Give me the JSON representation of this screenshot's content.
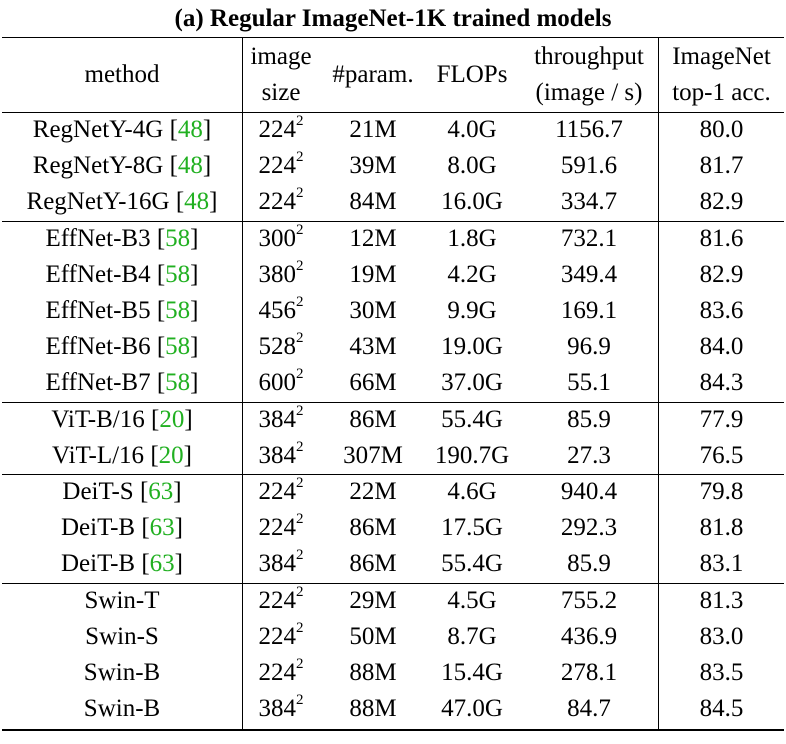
{
  "title": "(a) Regular ImageNet-1K trained models",
  "headers": {
    "method": "method",
    "image_size": [
      "image",
      "size"
    ],
    "param": "#param.",
    "flops": "FLOPs",
    "throughput": [
      "throughput",
      "(image / s)"
    ],
    "accuracy": [
      "ImageNet",
      "top-1 acc."
    ]
  },
  "groups": [
    [
      {
        "method": "RegNetY-4G",
        "ref": "48",
        "size": "224",
        "exp": "2",
        "param": "21M",
        "flops": "4.0G",
        "throughput": "1156.7",
        "acc": "80.0"
      },
      {
        "method": "RegNetY-8G",
        "ref": "48",
        "size": "224",
        "exp": "2",
        "param": "39M",
        "flops": "8.0G",
        "throughput": "591.6",
        "acc": "81.7"
      },
      {
        "method": "RegNetY-16G",
        "ref": "48",
        "size": "224",
        "exp": "2",
        "param": "84M",
        "flops": "16.0G",
        "throughput": "334.7",
        "acc": "82.9"
      }
    ],
    [
      {
        "method": "EffNet-B3",
        "ref": "58",
        "size": "300",
        "exp": "2",
        "param": "12M",
        "flops": "1.8G",
        "throughput": "732.1",
        "acc": "81.6"
      },
      {
        "method": "EffNet-B4",
        "ref": "58",
        "size": "380",
        "exp": "2",
        "param": "19M",
        "flops": "4.2G",
        "throughput": "349.4",
        "acc": "82.9"
      },
      {
        "method": "EffNet-B5",
        "ref": "58",
        "size": "456",
        "exp": "2",
        "param": "30M",
        "flops": "9.9G",
        "throughput": "169.1",
        "acc": "83.6"
      },
      {
        "method": "EffNet-B6",
        "ref": "58",
        "size": "528",
        "exp": "2",
        "param": "43M",
        "flops": "19.0G",
        "throughput": "96.9",
        "acc": "84.0"
      },
      {
        "method": "EffNet-B7",
        "ref": "58",
        "size": "600",
        "exp": "2",
        "param": "66M",
        "flops": "37.0G",
        "throughput": "55.1",
        "acc": "84.3"
      }
    ],
    [
      {
        "method": "ViT-B/16",
        "ref": "20",
        "size": "384",
        "exp": "2",
        "param": "86M",
        "flops": "55.4G",
        "throughput": "85.9",
        "acc": "77.9"
      },
      {
        "method": "ViT-L/16",
        "ref": "20",
        "size": "384",
        "exp": "2",
        "param": "307M",
        "flops": "190.7G",
        "throughput": "27.3",
        "acc": "76.5"
      }
    ],
    [
      {
        "method": "DeiT-S",
        "ref": "63",
        "size": "224",
        "exp": "2",
        "param": "22M",
        "flops": "4.6G",
        "throughput": "940.4",
        "acc": "79.8"
      },
      {
        "method": "DeiT-B",
        "ref": "63",
        "size": "224",
        "exp": "2",
        "param": "86M",
        "flops": "17.5G",
        "throughput": "292.3",
        "acc": "81.8"
      },
      {
        "method": "DeiT-B",
        "ref": "63",
        "size": "384",
        "exp": "2",
        "param": "86M",
        "flops": "55.4G",
        "throughput": "85.9",
        "acc": "83.1"
      }
    ],
    [
      {
        "method": "Swin-T",
        "ref": "",
        "size": "224",
        "exp": "2",
        "param": "29M",
        "flops": "4.5G",
        "throughput": "755.2",
        "acc": "81.3"
      },
      {
        "method": "Swin-S",
        "ref": "",
        "size": "224",
        "exp": "2",
        "param": "50M",
        "flops": "8.7G",
        "throughput": "436.9",
        "acc": "83.0"
      },
      {
        "method": "Swin-B",
        "ref": "",
        "size": "224",
        "exp": "2",
        "param": "88M",
        "flops": "15.4G",
        "throughput": "278.1",
        "acc": "83.5"
      },
      {
        "method": "Swin-B",
        "ref": "",
        "size": "384",
        "exp": "2",
        "param": "88M",
        "flops": "47.0G",
        "throughput": "84.7",
        "acc": "84.5"
      }
    ]
  ],
  "colors": {
    "reference_link": "#21b021",
    "text": "#000000",
    "background": "#ffffff"
  }
}
